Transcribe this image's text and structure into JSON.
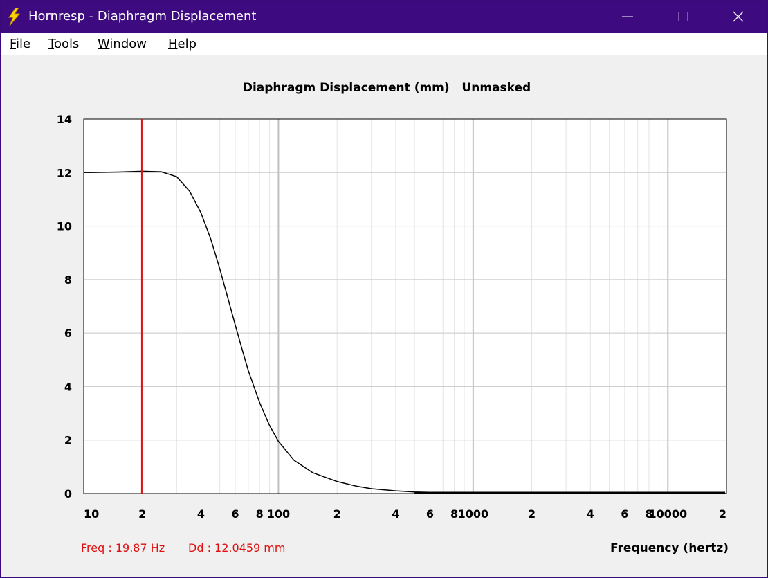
{
  "window": {
    "title": "Hornresp - Diaphragm Displacement",
    "icon": "lightning-bolt-icon",
    "controls": [
      "minimize-icon",
      "maximize-icon",
      "close-icon"
    ]
  },
  "menu": {
    "file": "File",
    "tools": "Tools",
    "window": "Window",
    "help": "Help"
  },
  "readout": {
    "freq": "Freq : 19.87 Hz",
    "dd": "Dd : 12.0459 mm"
  },
  "colors": {
    "titlebar": "#3d0a80",
    "cursor": "#e01010",
    "curve": "#000000",
    "grid": "#c8c8c8"
  },
  "chart_data": {
    "type": "line",
    "title": "Diaphragm Displacement (mm)   Unmasked",
    "xlabel": "Frequency (hertz)",
    "ylabel": "",
    "x_scale": "log",
    "xlim": [
      10,
      20000
    ],
    "ylim": [
      0,
      14
    ],
    "grid": true,
    "y_ticks": [
      "14",
      "12",
      "10",
      "8",
      "6",
      "4",
      "2",
      "0"
    ],
    "x_ticks": [
      {
        "value": 10,
        "label": "10"
      },
      {
        "value": 20,
        "label": "2"
      },
      {
        "value": 40,
        "label": "4"
      },
      {
        "value": 60,
        "label": "6"
      },
      {
        "value": 80,
        "label": "8"
      },
      {
        "value": 100,
        "label": "100"
      },
      {
        "value": 200,
        "label": "2"
      },
      {
        "value": 400,
        "label": "4"
      },
      {
        "value": 600,
        "label": "6"
      },
      {
        "value": 800,
        "label": "8"
      },
      {
        "value": 1000,
        "label": "1000"
      },
      {
        "value": 2000,
        "label": "2"
      },
      {
        "value": 4000,
        "label": "4"
      },
      {
        "value": 6000,
        "label": "6"
      },
      {
        "value": 8000,
        "label": "8"
      },
      {
        "value": 10000,
        "label": "10000"
      },
      {
        "value": 20000,
        "label": "2"
      }
    ],
    "cursor_x": 19.87,
    "series": [
      {
        "x": [
          10,
          15,
          20,
          25,
          30,
          35,
          40,
          45,
          50,
          55,
          60,
          65,
          70,
          80,
          90,
          100,
          120,
          150,
          200,
          250,
          300,
          400,
          500,
          700,
          1000,
          2000,
          5000,
          10000,
          20000
        ],
        "y": [
          12.0,
          12.02,
          12.05,
          12.03,
          11.85,
          11.3,
          10.5,
          9.5,
          8.4,
          7.3,
          6.3,
          5.4,
          4.6,
          3.4,
          2.55,
          1.95,
          1.25,
          0.78,
          0.45,
          0.28,
          0.18,
          0.1,
          0.06,
          0.03,
          0.02,
          0.01,
          0.0,
          0.0,
          0.0
        ]
      }
    ]
  }
}
